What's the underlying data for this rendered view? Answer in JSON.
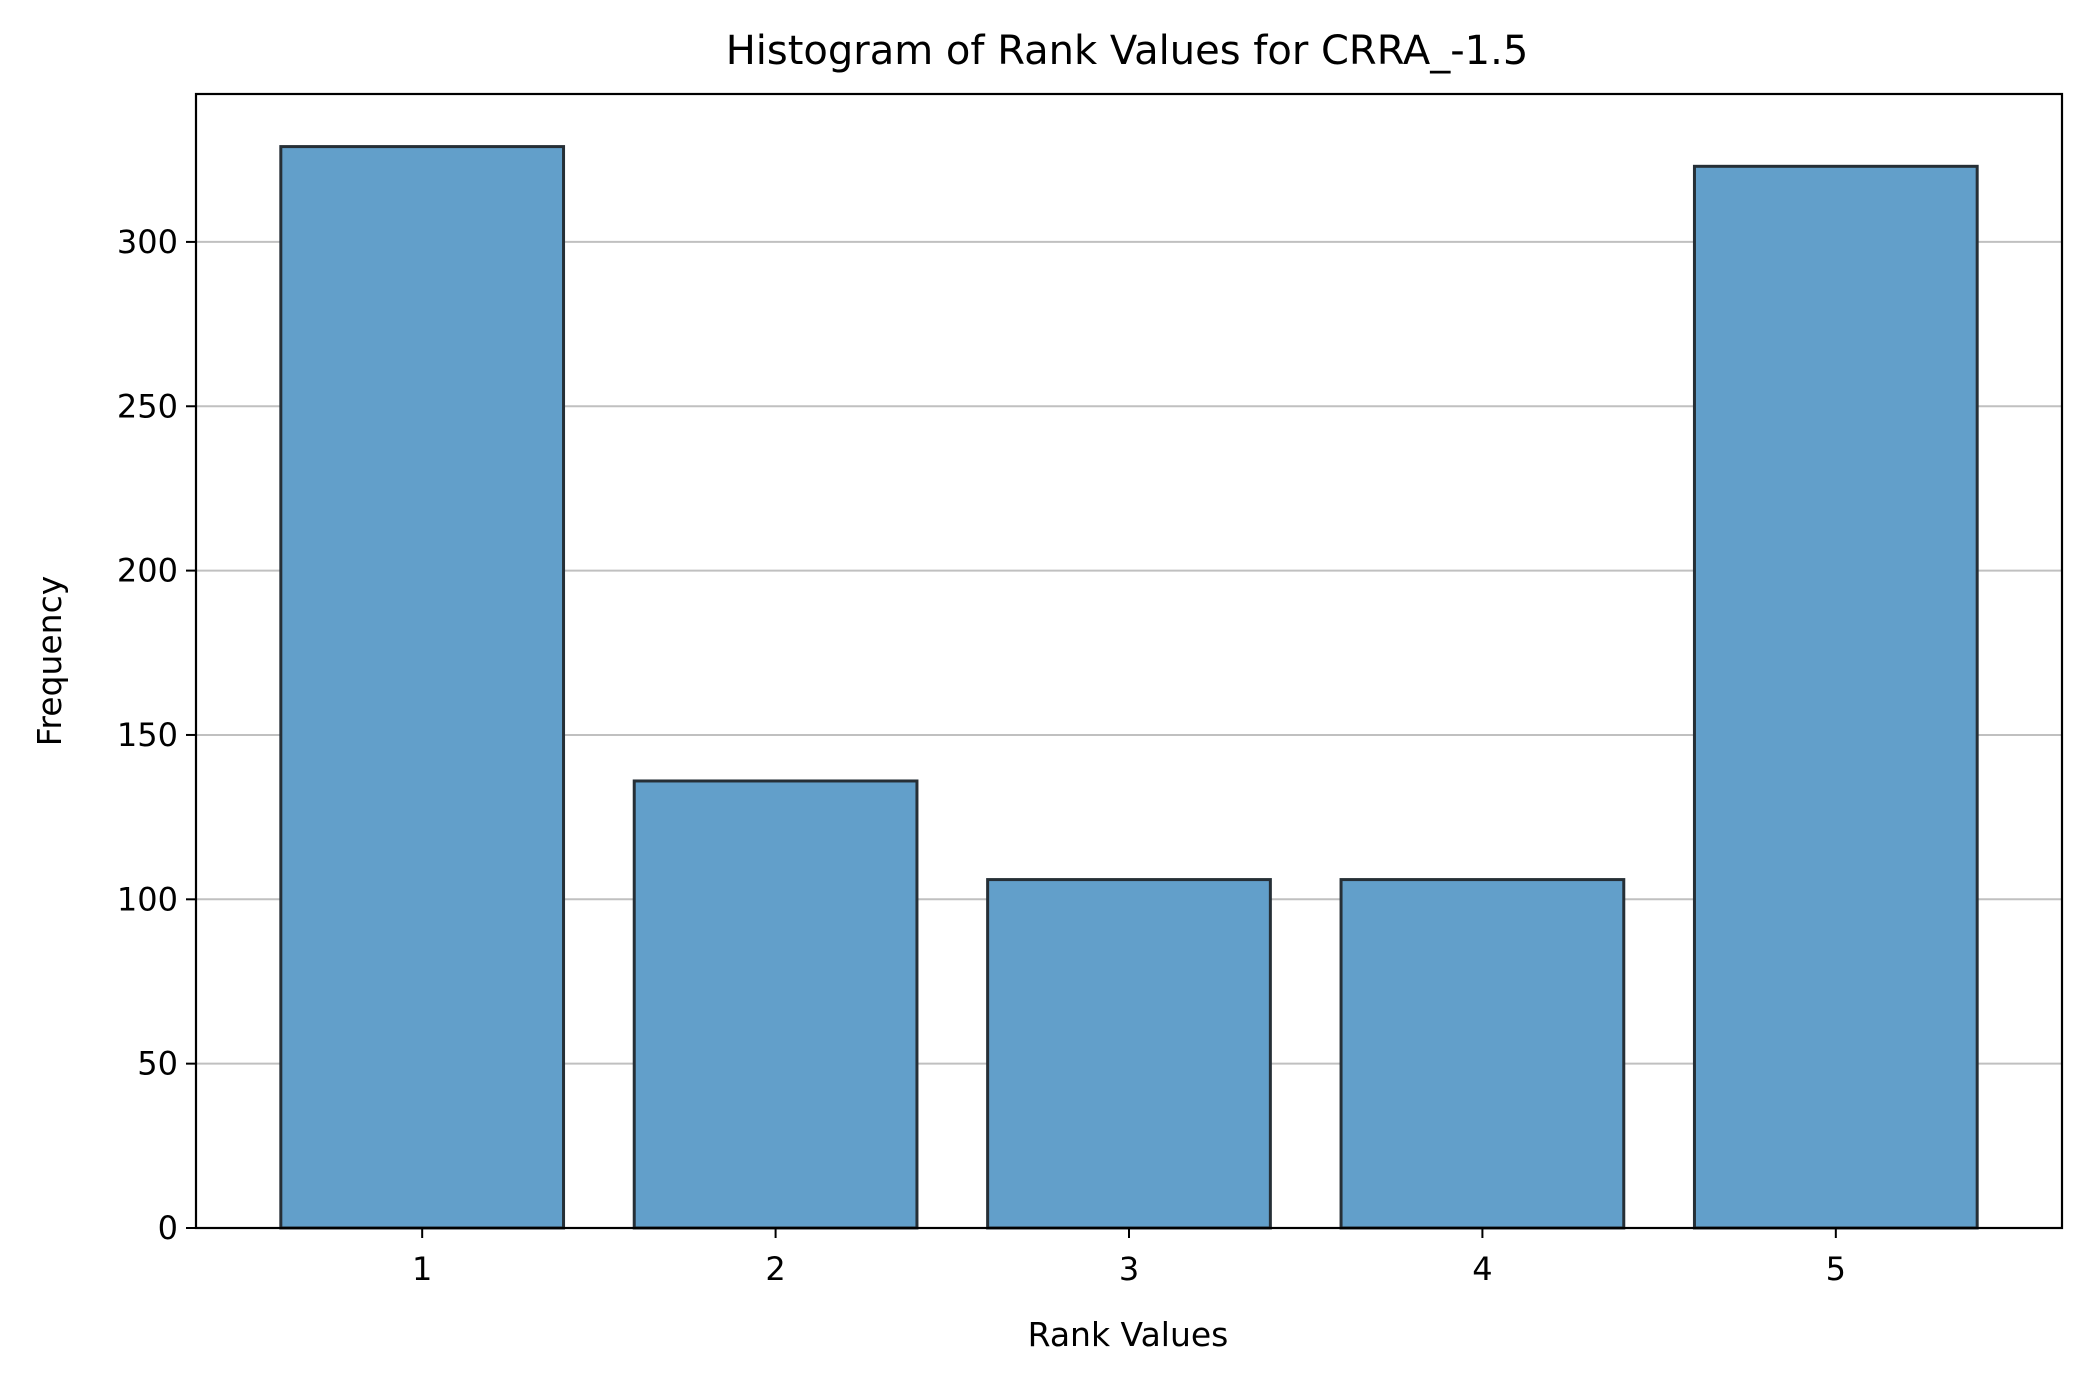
{
  "chart_data": {
    "type": "bar",
    "title": "Histogram of Rank Values for CRRA_-1.5",
    "xlabel": "Rank Values",
    "ylabel": "Frequency",
    "categories": [
      "1",
      "2",
      "3",
      "4",
      "5"
    ],
    "x": [
      1,
      2,
      3,
      4,
      5
    ],
    "values": [
      329,
      136,
      106,
      106,
      323
    ],
    "ylim": [
      0,
      345
    ],
    "xlim": [
      0.36,
      5.64
    ],
    "yticks": [
      0,
      50,
      100,
      150,
      200,
      250,
      300
    ],
    "ytick_labels": [
      "0",
      "50",
      "100",
      "150",
      "200",
      "250",
      "300"
    ],
    "xtick_labels": [
      "1",
      "2",
      "3",
      "4",
      "5"
    ],
    "bar_width": 0.8,
    "grid": {
      "y": true,
      "x": false
    },
    "legend": "none",
    "colors": {
      "bar_fill": "#629fca",
      "bar_edge": "#262f36",
      "grid": "#c0c0c0"
    }
  }
}
